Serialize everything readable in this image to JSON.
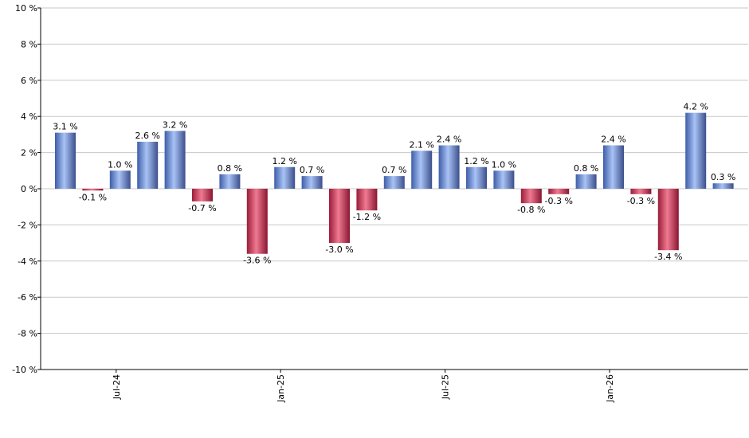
{
  "chart_data": {
    "type": "bar",
    "ylim": [
      -10,
      10
    ],
    "yticks": [
      10,
      8,
      6,
      4,
      2,
      0,
      -2,
      -4,
      -6,
      -8,
      -10
    ],
    "ytick_suffix": " %",
    "grid": true,
    "xtick_labels": [
      {
        "label": "Jul-24",
        "index": 2
      },
      {
        "label": "Jan-25",
        "index": 8
      },
      {
        "label": "Jul-25",
        "index": 14
      },
      {
        "label": "Jan-26",
        "index": 20
      }
    ],
    "values": [
      3.1,
      -0.1,
      1.0,
      2.6,
      3.2,
      -0.7,
      0.8,
      -3.6,
      1.2,
      0.7,
      -3.0,
      -1.2,
      0.7,
      2.1,
      2.4,
      1.2,
      1.0,
      -0.8,
      -0.3,
      0.8,
      2.4,
      -0.3,
      -3.4,
      4.2,
      0.3
    ],
    "labels": [
      "3.1 %",
      "-0.1 %",
      "1.0 %",
      "2.6 %",
      "3.2 %",
      "-0.7 %",
      "0.8 %",
      "-3.6 %",
      "1.2 %",
      "0.7 %",
      "-3.0 %",
      "-1.2 %",
      "0.7 %",
      "2.1 %",
      "2.4 %",
      "1.2 %",
      "1.0 %",
      "-0.8 %",
      "-0.3 %",
      "0.8 %",
      "2.4 %",
      "-0.3 %",
      "-3.4 %",
      "4.2 %",
      "0.3 %"
    ],
    "colors": {
      "positive": "#6f8fd6",
      "negative": "#c8334f",
      "grid": "#c8c8c8",
      "axis": "#000000"
    }
  }
}
